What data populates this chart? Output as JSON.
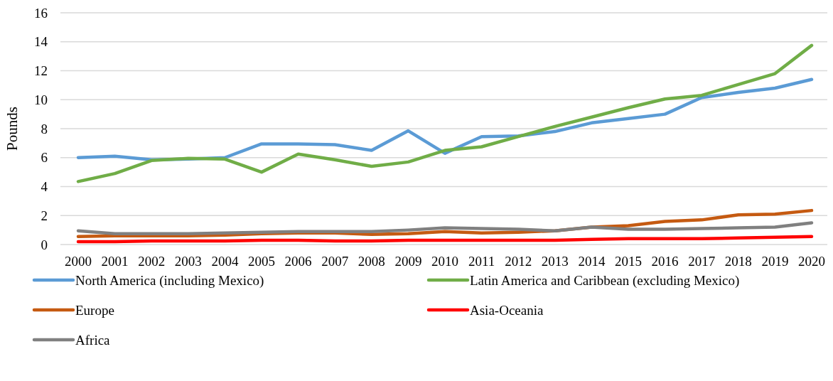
{
  "chart_data": {
    "type": "line",
    "ylabel": "Pounds",
    "categories": [
      "2000",
      "2001",
      "2002",
      "2003",
      "2004",
      "2005",
      "2006",
      "2007",
      "2008",
      "2009",
      "2010",
      "2011",
      "2012",
      "2013",
      "2014",
      "2015",
      "2016",
      "2017",
      "2018",
      "2019",
      "2020"
    ],
    "ylim": [
      0,
      16
    ],
    "yticks": [
      0,
      2,
      4,
      6,
      8,
      10,
      12,
      14,
      16
    ],
    "grid": "y",
    "legend": "bottom",
    "marker": "none",
    "line_style": "solid",
    "series": [
      {
        "name": "North America (including Mexico)",
        "color": "#5b9bd5",
        "values": [
          6.0,
          6.1,
          5.85,
          5.9,
          6.0,
          6.95,
          6.95,
          6.9,
          6.5,
          7.85,
          6.3,
          7.45,
          7.5,
          7.8,
          8.4,
          8.7,
          9.0,
          10.15,
          10.5,
          10.8,
          11.4
        ]
      },
      {
        "name": "Latin America and Caribbean (excluding Mexico)",
        "color": "#70ad47",
        "values": [
          4.35,
          4.9,
          5.8,
          5.95,
          5.9,
          5.0,
          6.25,
          5.85,
          5.4,
          5.7,
          6.5,
          6.75,
          7.45,
          8.15,
          8.8,
          9.45,
          10.05,
          10.3,
          11.05,
          11.8,
          13.75
        ]
      },
      {
        "name": "Europe",
        "color": "#c55a11",
        "values": [
          0.55,
          0.6,
          0.6,
          0.6,
          0.65,
          0.75,
          0.8,
          0.8,
          0.7,
          0.75,
          0.9,
          0.8,
          0.85,
          0.95,
          1.2,
          1.3,
          1.6,
          1.7,
          2.05,
          2.1,
          2.35
        ]
      },
      {
        "name": "Asia-Oceania",
        "color": "#ff0000",
        "values": [
          0.2,
          0.2,
          0.25,
          0.25,
          0.25,
          0.3,
          0.3,
          0.25,
          0.25,
          0.3,
          0.3,
          0.3,
          0.3,
          0.3,
          0.35,
          0.4,
          0.4,
          0.4,
          0.45,
          0.5,
          0.55
        ]
      },
      {
        "name": "Africa",
        "color": "#808080",
        "values": [
          0.95,
          0.75,
          0.75,
          0.75,
          0.8,
          0.85,
          0.9,
          0.9,
          0.9,
          1.0,
          1.15,
          1.1,
          1.05,
          0.95,
          1.2,
          1.05,
          1.05,
          1.1,
          1.15,
          1.2,
          1.5
        ]
      }
    ]
  }
}
